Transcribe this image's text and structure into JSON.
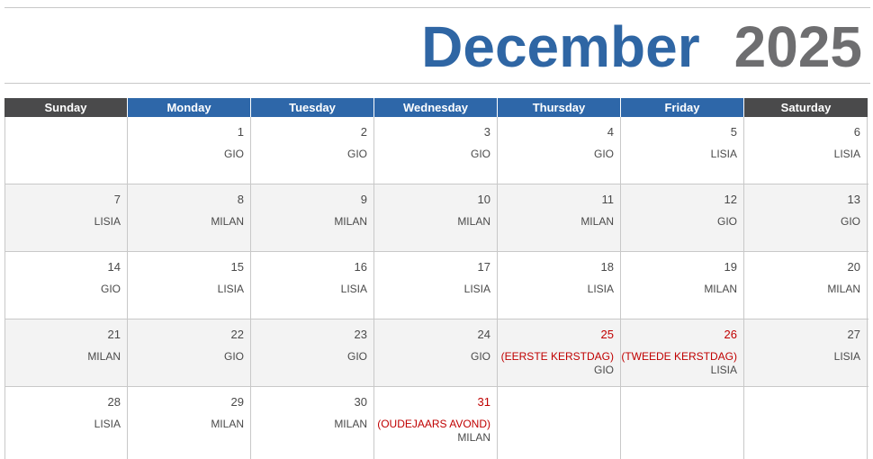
{
  "header": {
    "month": "December",
    "year": "2025"
  },
  "weekdays": [
    "Sunday",
    "Monday",
    "Tuesday",
    "Wednesday",
    "Thursday",
    "Friday",
    "Saturday"
  ],
  "weeks": [
    [
      {
        "day": "",
        "holiday": "",
        "name": ""
      },
      {
        "day": "1",
        "holiday": "",
        "name": "GIO"
      },
      {
        "day": "2",
        "holiday": "",
        "name": "GIO"
      },
      {
        "day": "3",
        "holiday": "",
        "name": "GIO"
      },
      {
        "day": "4",
        "holiday": "",
        "name": "GIO"
      },
      {
        "day": "5",
        "holiday": "",
        "name": "LISIA"
      },
      {
        "day": "6",
        "holiday": "",
        "name": "LISIA"
      }
    ],
    [
      {
        "day": "7",
        "holiday": "",
        "name": "LISIA"
      },
      {
        "day": "8",
        "holiday": "",
        "name": "MILAN"
      },
      {
        "day": "9",
        "holiday": "",
        "name": "MILAN"
      },
      {
        "day": "10",
        "holiday": "",
        "name": "MILAN"
      },
      {
        "day": "11",
        "holiday": "",
        "name": "MILAN"
      },
      {
        "day": "12",
        "holiday": "",
        "name": "GIO"
      },
      {
        "day": "13",
        "holiday": "",
        "name": "GIO"
      }
    ],
    [
      {
        "day": "14",
        "holiday": "",
        "name": "GIO"
      },
      {
        "day": "15",
        "holiday": "",
        "name": "LISIA"
      },
      {
        "day": "16",
        "holiday": "",
        "name": "LISIA"
      },
      {
        "day": "17",
        "holiday": "",
        "name": "LISIA"
      },
      {
        "day": "18",
        "holiday": "",
        "name": "LISIA"
      },
      {
        "day": "19",
        "holiday": "",
        "name": "MILAN"
      },
      {
        "day": "20",
        "holiday": "",
        "name": "MILAN"
      }
    ],
    [
      {
        "day": "21",
        "holiday": "",
        "name": "MILAN"
      },
      {
        "day": "22",
        "holiday": "",
        "name": "GIO"
      },
      {
        "day": "23",
        "holiday": "",
        "name": "GIO"
      },
      {
        "day": "24",
        "holiday": "",
        "name": "GIO"
      },
      {
        "day": "25",
        "holiday": "(EERSTE KERSTDAG)",
        "name": "GIO"
      },
      {
        "day": "26",
        "holiday": "(TWEEDE KERSTDAG)",
        "name": "LISIA"
      },
      {
        "day": "27",
        "holiday": "",
        "name": "LISIA"
      }
    ],
    [
      {
        "day": "28",
        "holiday": "",
        "name": "LISIA"
      },
      {
        "day": "29",
        "holiday": "",
        "name": "MILAN"
      },
      {
        "day": "30",
        "holiday": "",
        "name": "MILAN"
      },
      {
        "day": "31",
        "holiday": "(OUDEJAARS AVOND)",
        "name": "MILAN"
      },
      {
        "day": "",
        "holiday": "",
        "name": ""
      },
      {
        "day": "",
        "holiday": "",
        "name": ""
      },
      {
        "day": "",
        "holiday": "",
        "name": ""
      }
    ]
  ],
  "colors": {
    "weekday_header": "#2e67a9",
    "weekend_header": "#4a4a4b",
    "holiday": "#c00000",
    "month_title": "#2f66a4",
    "year_title": "#6e6e70"
  }
}
